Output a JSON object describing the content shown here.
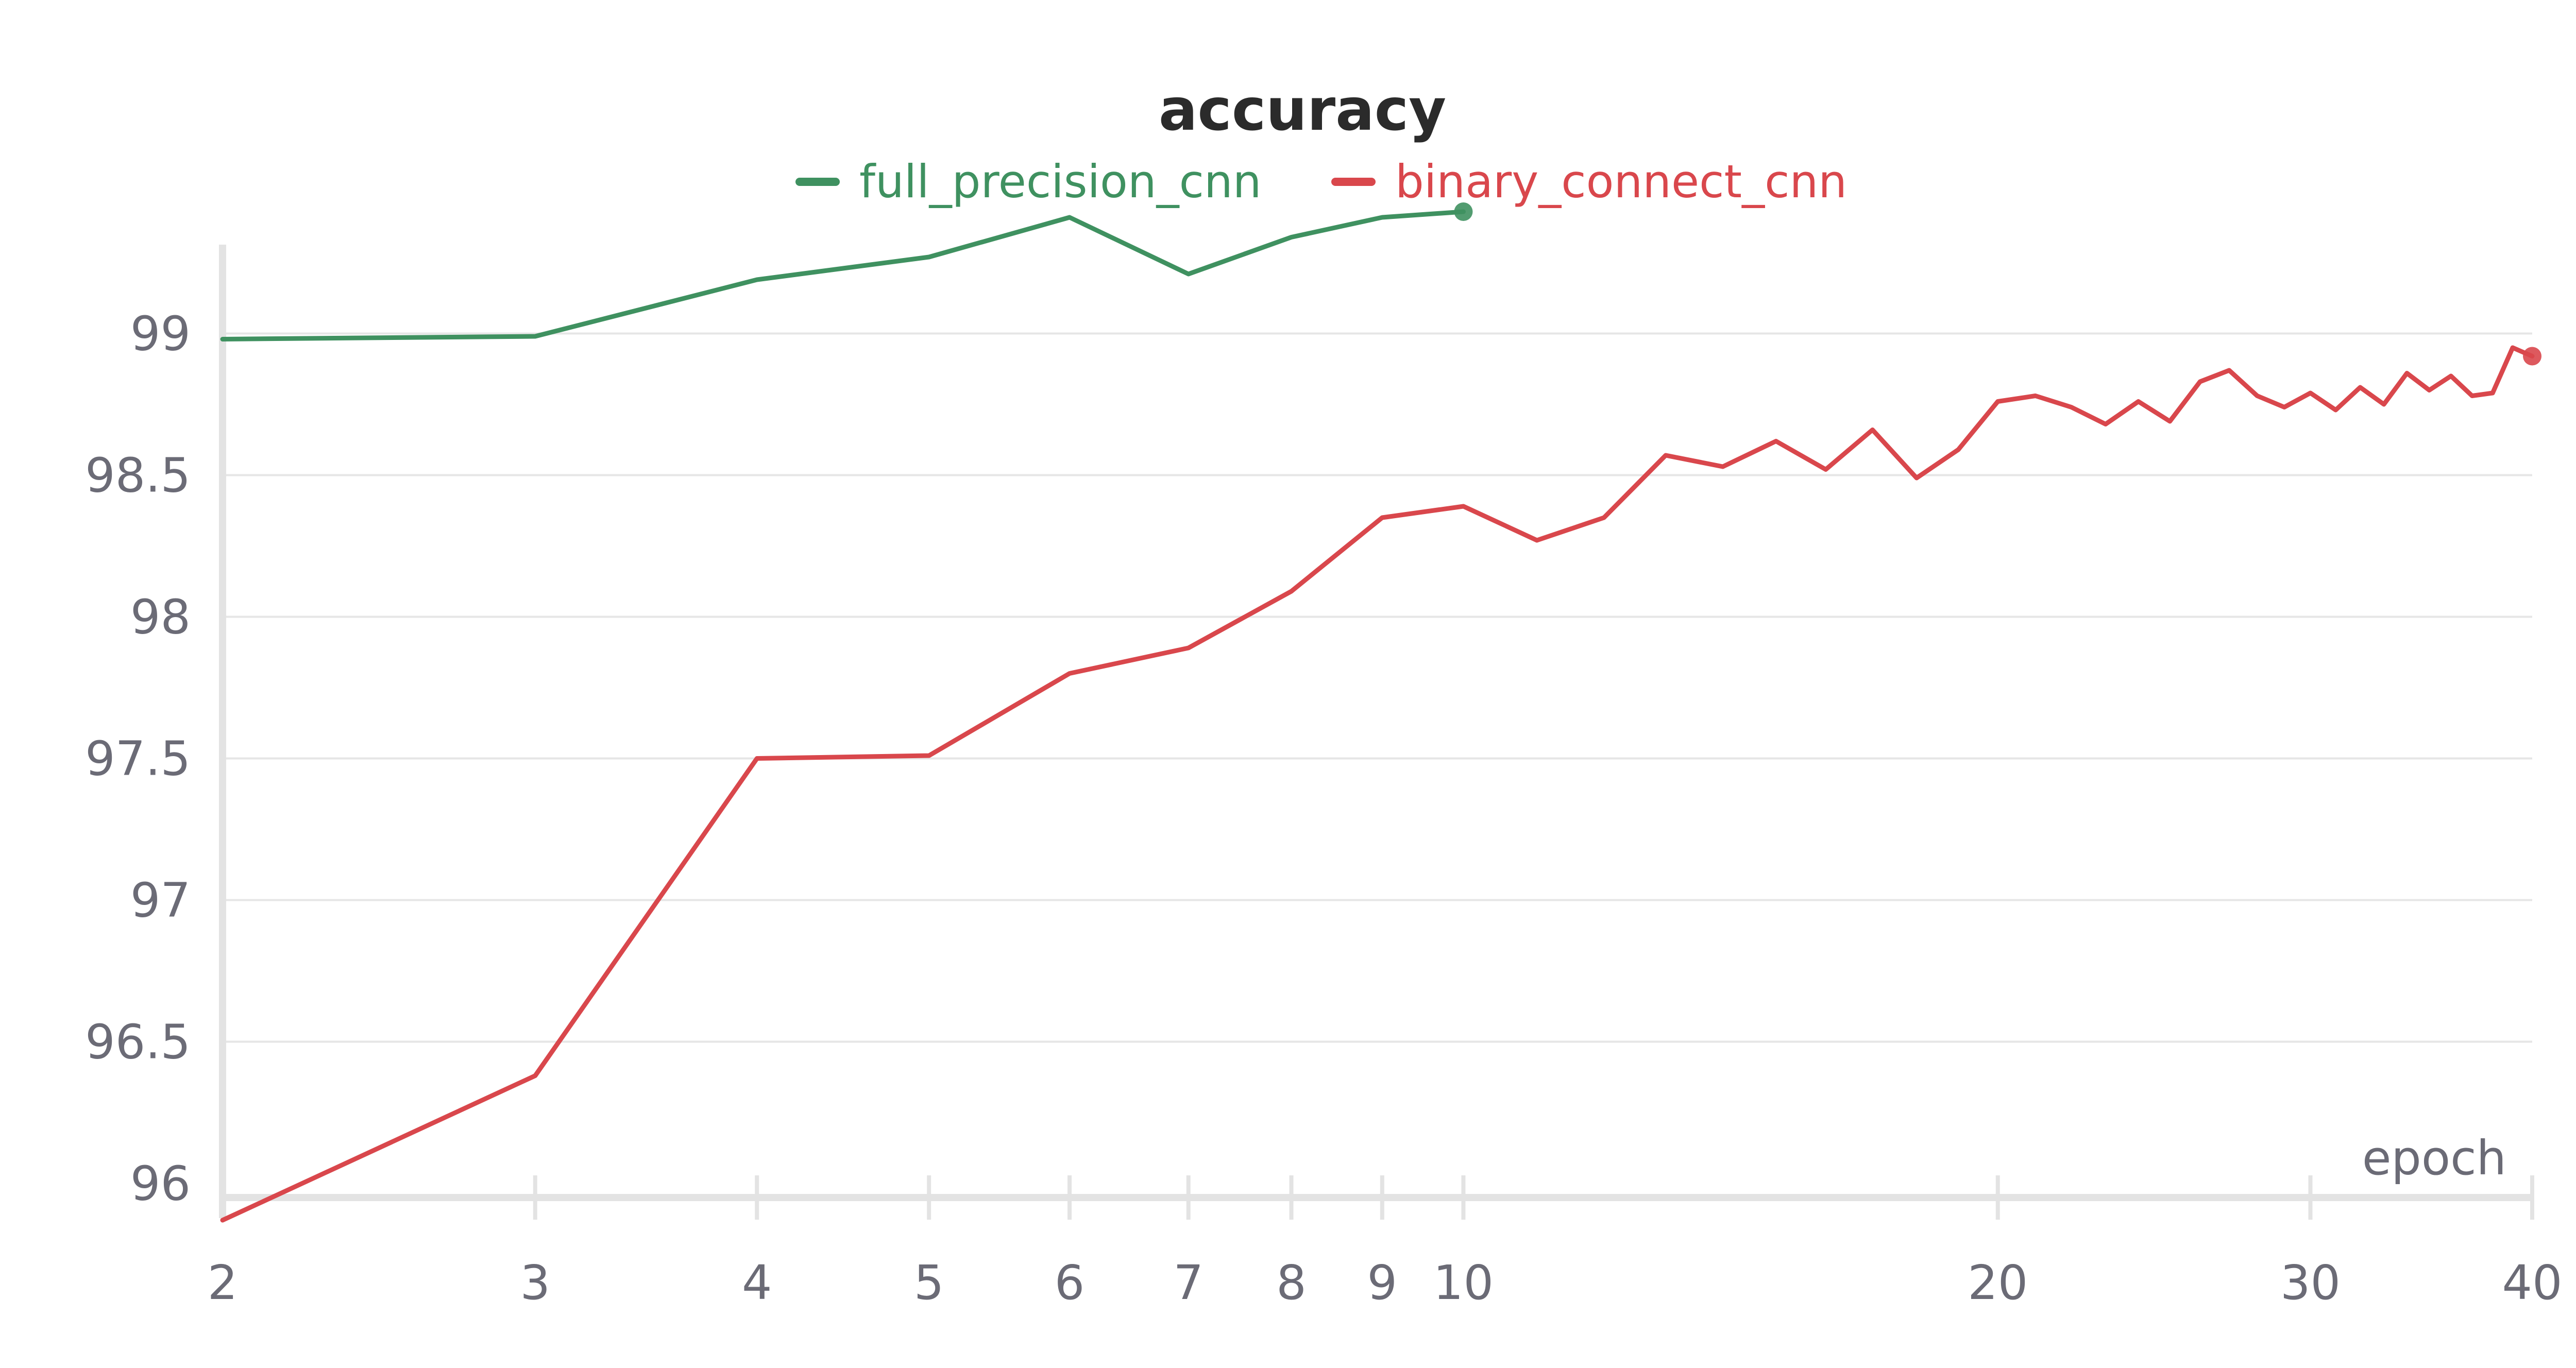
{
  "chart_data": {
    "type": "line",
    "title": "accuracy",
    "xlabel": "epoch",
    "ylabel": "",
    "x_scale": "log",
    "xlim": [
      2,
      40
    ],
    "ylim": [
      95.95,
      99.45
    ],
    "x_ticks": [
      2,
      3,
      4,
      5,
      6,
      7,
      8,
      9,
      10,
      20,
      30,
      40
    ],
    "x_tick_labels": [
      "2",
      "3",
      "4",
      "5",
      "6",
      "7",
      "8",
      "9",
      "10",
      "20",
      "30",
      "40"
    ],
    "y_ticks": [
      96,
      96.5,
      97,
      97.5,
      98,
      98.5,
      99
    ],
    "y_tick_labels": [
      "96",
      "96.5",
      "97",
      "97.5",
      "98",
      "98.5",
      "99"
    ],
    "grid": true,
    "legend_position": "top-center",
    "series": [
      {
        "name": "full_precision_cnn",
        "color": "#3f9160",
        "x": [
          2,
          3,
          4,
          5,
          6,
          7,
          8,
          9,
          10
        ],
        "y": [
          98.98,
          98.99,
          99.19,
          99.27,
          99.41,
          99.21,
          99.34,
          99.41,
          99.43
        ]
      },
      {
        "name": "binary_connect_cnn",
        "color": "#d9474c",
        "x": [
          2,
          3,
          4,
          5,
          6,
          7,
          8,
          9,
          10,
          11,
          12,
          13,
          14,
          15,
          16,
          17,
          18,
          19,
          20,
          21,
          22,
          23,
          24,
          25,
          26,
          27,
          28,
          29,
          30,
          31,
          32,
          33,
          34,
          35,
          36,
          37,
          38,
          39,
          40
        ],
        "y": [
          95.87,
          96.38,
          97.5,
          97.51,
          97.8,
          97.89,
          98.09,
          98.35,
          98.39,
          98.27,
          98.35,
          98.57,
          98.53,
          98.62,
          98.52,
          98.66,
          98.49,
          98.59,
          98.76,
          98.78,
          98.74,
          98.68,
          98.76,
          98.69,
          98.83,
          98.87,
          98.78,
          98.74,
          98.79,
          98.73,
          98.81,
          98.75,
          98.86,
          98.8,
          98.85,
          98.78,
          98.79,
          98.95,
          98.92
        ]
      }
    ]
  }
}
